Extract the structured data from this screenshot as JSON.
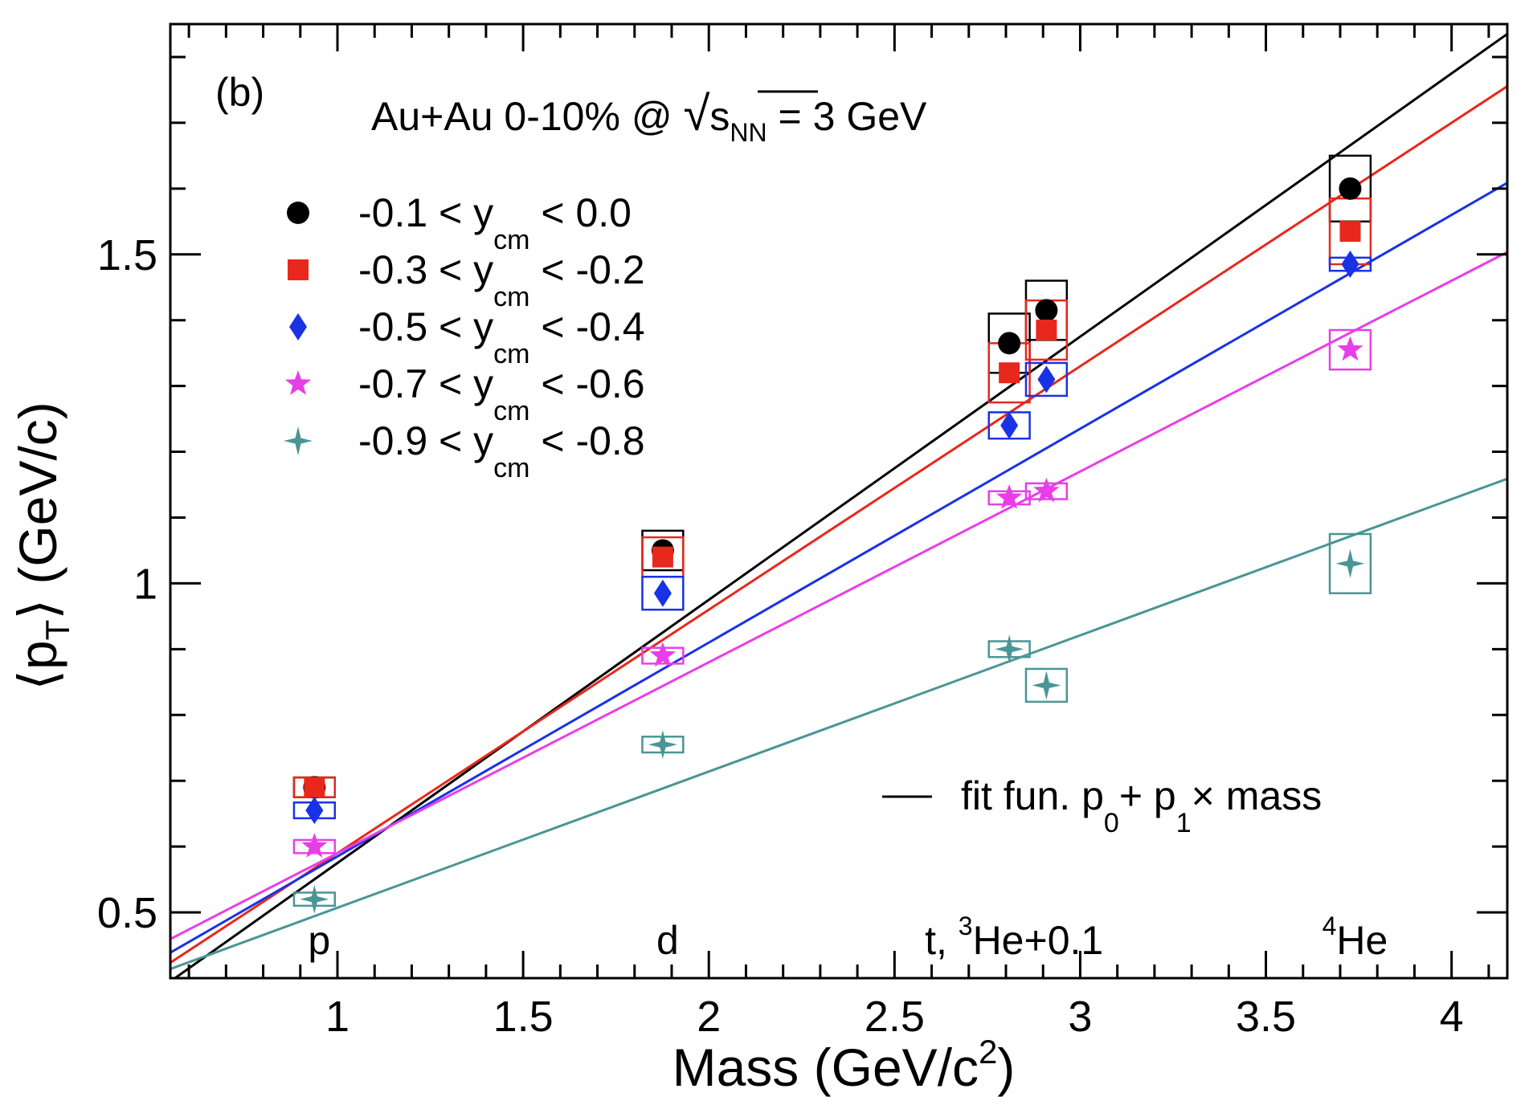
{
  "chart_data": {
    "type": "scatter",
    "panel_label": "(b)",
    "header": {
      "prefix": "Au+Au 0-10% @ ",
      "sqrt_sub": "NN",
      "sqrt_var": "s",
      "suffix": " = 3 GeV"
    },
    "xlabel": {
      "main": "Mass (GeV/c",
      "sup": "2",
      "close": ")"
    },
    "ylabel": {
      "open": "⟨p",
      "sub": "T",
      "close": "⟩ (GeV/c)"
    },
    "xlim": [
      0.55,
      4.15
    ],
    "ylim": [
      0.4,
      1.85
    ],
    "x_ticks": [
      "1",
      "1.5",
      "2",
      "2.5",
      "3",
      "3.5",
      "4"
    ],
    "x_tick_values": [
      1,
      1.5,
      2,
      2.5,
      3,
      3.5,
      4
    ],
    "y_ticks": [
      "0.5",
      "1",
      "1.5"
    ],
    "y_tick_values": [
      0.5,
      1.0,
      1.5
    ],
    "particle_labels": [
      {
        "x": 0.938,
        "pre": "p",
        "sup": "",
        "post": ""
      },
      {
        "x": 1.876,
        "pre": "d",
        "sup": "",
        "post": ""
      },
      {
        "x": 2.809,
        "pre": "t, ",
        "sup": "3",
        "post": "He+0.1"
      },
      {
        "x": 3.727,
        "pre": "",
        "sup": "4",
        "post": "He"
      }
    ],
    "series": [
      {
        "name": "-0.1 < y_cm < 0.0",
        "label_pre": "-0.1 < y",
        "label_sub": "cm",
        "label_post": " <  0.0",
        "marker": "circle",
        "color": "#000000",
        "fit": {
          "p0": 0.175,
          "p1": 0.4
        },
        "points": [
          {
            "x": 0.938,
            "y": 0.69,
            "sys": 0.015
          },
          {
            "x": 1.876,
            "y": 1.05,
            "sys": 0.03
          },
          {
            "x": 2.809,
            "y": 1.365,
            "sys": 0.045
          },
          {
            "x": 2.909,
            "y": 1.415,
            "sys": 0.045
          },
          {
            "x": 3.727,
            "y": 1.6,
            "sys": 0.05
          }
        ]
      },
      {
        "name": "-0.3 < y_cm < -0.2",
        "label_pre": "-0.3 < y",
        "label_sub": "cm",
        "label_post": " < -0.2",
        "marker": "square",
        "color": "#e8281c",
        "fit": {
          "p0": 0.22,
          "p1": 0.37
        },
        "points": [
          {
            "x": 0.938,
            "y": 0.69,
            "sys": 0.015
          },
          {
            "x": 1.876,
            "y": 1.04,
            "sys": 0.03
          },
          {
            "x": 2.809,
            "y": 1.32,
            "sys": 0.045
          },
          {
            "x": 2.909,
            "y": 1.385,
            "sys": 0.045
          },
          {
            "x": 3.727,
            "y": 1.535,
            "sys": 0.05
          }
        ]
      },
      {
        "name": "-0.5 < y_cm < -0.4",
        "label_pre": "-0.5 < y",
        "label_sub": "cm",
        "label_post": " < -0.4",
        "marker": "diamond",
        "color": "#1932e6",
        "fit": {
          "p0": 0.26,
          "p1": 0.325
        },
        "points": [
          {
            "x": 0.938,
            "y": 0.655,
            "sys": 0.012
          },
          {
            "x": 1.876,
            "y": 0.985,
            "sys": 0.025
          },
          {
            "x": 2.809,
            "y": 1.24,
            "sys": 0.02
          },
          {
            "x": 2.909,
            "y": 1.31,
            "sys": 0.025
          },
          {
            "x": 3.727,
            "y": 1.485,
            "sys": 0.01
          }
        ]
      },
      {
        "name": "-0.7 < y_cm < -0.6",
        "label_pre": "-0.7 < y",
        "label_sub": "cm",
        "label_post": " < -0.6",
        "marker": "star",
        "color": "#e83ee8",
        "fit": {
          "p0": 0.3,
          "p1": 0.29
        },
        "points": [
          {
            "x": 0.938,
            "y": 0.6,
            "sys": 0.01
          },
          {
            "x": 1.876,
            "y": 0.89,
            "sys": 0.012
          },
          {
            "x": 2.809,
            "y": 1.13,
            "sys": 0.01
          },
          {
            "x": 2.909,
            "y": 1.14,
            "sys": 0.012
          },
          {
            "x": 3.727,
            "y": 1.355,
            "sys": 0.03
          }
        ]
      },
      {
        "name": "-0.9 < y_cm < -0.8",
        "label_pre": "-0.9 < y",
        "label_sub": "cm",
        "label_post": " < -0.8",
        "marker": "star4",
        "color": "#4a9595",
        "fit": {
          "p0": 0.3,
          "p1": 0.207
        },
        "points": [
          {
            "x": 0.938,
            "y": 0.52,
            "sys": 0.01
          },
          {
            "x": 1.876,
            "y": 0.755,
            "sys": 0.012
          },
          {
            "x": 2.809,
            "y": 0.9,
            "sys": 0.012
          },
          {
            "x": 2.909,
            "y": 0.845,
            "sys": 0.025
          },
          {
            "x": 3.727,
            "y": 1.03,
            "sys": 0.045
          }
        ]
      }
    ],
    "fit_note": {
      "pre": "fit fun. p",
      "sub0": "0",
      "mid": "+ p",
      "sub1": "1",
      "post": "× mass"
    }
  }
}
